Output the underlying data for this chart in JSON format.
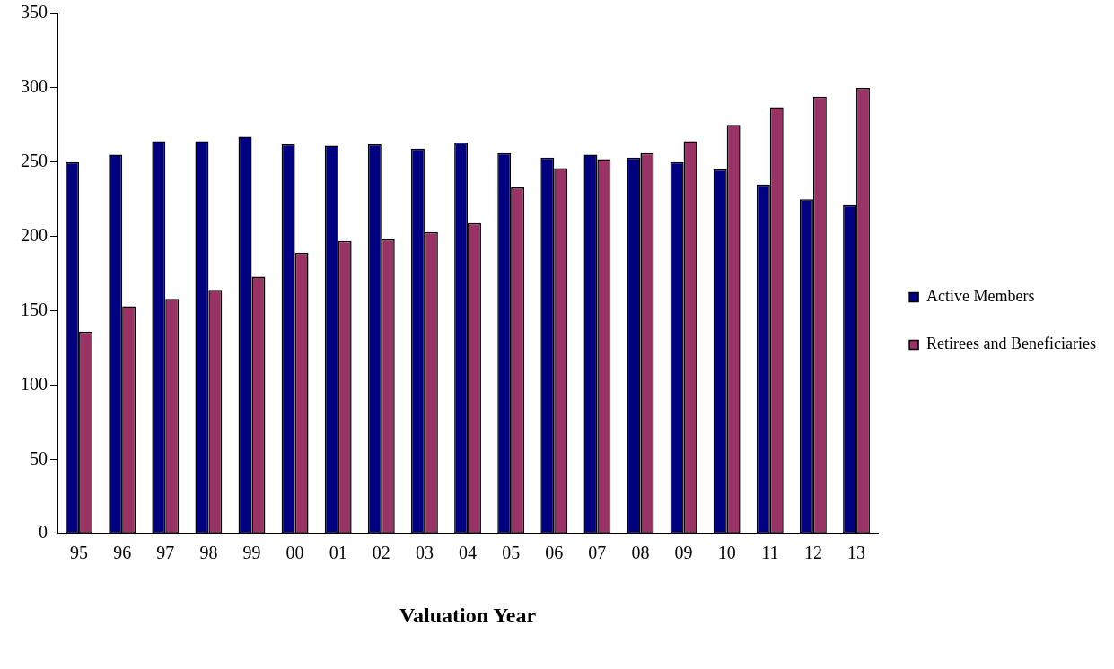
{
  "chart_data": {
    "type": "bar",
    "xlabel": "Valuation Year",
    "categories": [
      "95",
      "96",
      "97",
      "98",
      "99",
      "00",
      "01",
      "02",
      "03",
      "04",
      "05",
      "06",
      "07",
      "08",
      "09",
      "10",
      "11",
      "12",
      "13"
    ],
    "series": [
      {
        "name": "Active Members",
        "color": "#000080",
        "values": [
          250,
          255,
          264,
          264,
          267,
          262,
          261,
          262,
          259,
          263,
          256,
          253,
          255,
          253,
          250,
          245,
          235,
          225,
          221
        ]
      },
      {
        "name": "Retirees and Beneficiaries",
        "color": "#993366",
        "values": [
          136,
          153,
          158,
          164,
          173,
          189,
          197,
          198,
          203,
          209,
          233,
          246,
          252,
          256,
          264,
          275,
          287,
          294,
          300
        ]
      }
    ],
    "ylim": [
      0,
      350
    ],
    "yticks": [
      0,
      50,
      100,
      150,
      200,
      250,
      300,
      350
    ],
    "grid": false,
    "legend": "right"
  }
}
